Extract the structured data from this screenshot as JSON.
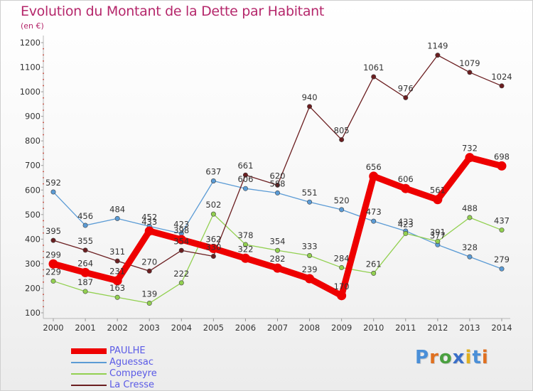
{
  "header": {
    "title": "Evolution du Montant de la Dette par Habitant",
    "subtitle": "(en €)"
  },
  "chart_data": {
    "type": "line",
    "x": [
      2000,
      2001,
      2002,
      2003,
      2004,
      2005,
      2006,
      2007,
      2008,
      2009,
      2010,
      2011,
      2012,
      2013,
      2014
    ],
    "ylim": [
      100,
      1200
    ],
    "yticks": [
      100,
      200,
      300,
      400,
      500,
      600,
      700,
      800,
      900,
      1000,
      1100,
      1200
    ],
    "grid": false,
    "legend_position": "bottom-left",
    "series": [
      {
        "name": "PAULHE",
        "color": "#ee0000",
        "values": [
          299,
          264,
          231,
          433,
          398,
          362,
          322,
          282,
          239,
          170,
          656,
          606,
          561,
          732,
          698
        ]
      },
      {
        "name": "Aguessac",
        "color": "#5b9bd5",
        "values": [
          592,
          456,
          484,
          452,
          423,
          637,
          606,
          588,
          551,
          520,
          473,
          433,
          377,
          328,
          279
        ]
      },
      {
        "name": "Compeyre",
        "color": "#92d050",
        "values": [
          229,
          187,
          163,
          139,
          222,
          502,
          378,
          354,
          333,
          284,
          261,
          423,
          391,
          488,
          437
        ]
      },
      {
        "name": "La Cresse",
        "color": "#6b1e20",
        "values": [
          395,
          355,
          311,
          270,
          354,
          330,
          661,
          620,
          940,
          805,
          1061,
          976,
          1149,
          1079,
          1024
        ]
      }
    ]
  },
  "logo": {
    "letters": [
      "P",
      "r",
      "o",
      "x",
      "i",
      "t",
      "i"
    ],
    "colors": [
      "#4a8fd8",
      "#e07020",
      "#4aa040",
      "#3a6fc8",
      "#e0b020",
      "#4a8fd8",
      "#e07020"
    ]
  }
}
